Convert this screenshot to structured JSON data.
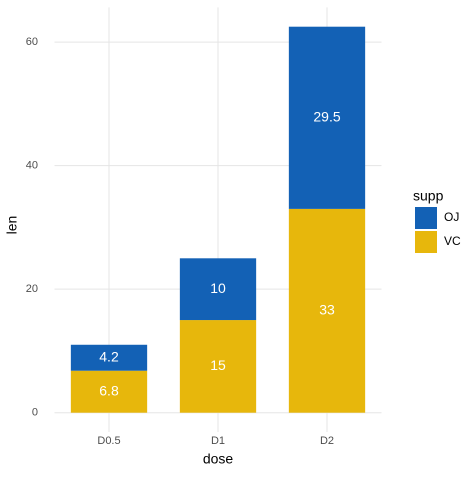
{
  "chart_data": {
    "type": "stacked_bar",
    "x_label": "dose",
    "y_label": "len",
    "categories": [
      "D0.5",
      "D1",
      "D2"
    ],
    "series": [
      {
        "name": "OJ",
        "color": "#1361b5",
        "values": [
          4.2,
          10,
          29.5
        ]
      },
      {
        "name": "VC",
        "color": "#e7b70c",
        "values": [
          6.8,
          15,
          33
        ]
      }
    ],
    "legend_title": "supp",
    "legend": "right",
    "ylim": [
      -3.125,
      65.625
    ],
    "yticks": [
      0,
      20,
      40,
      60
    ],
    "grid": true
  }
}
